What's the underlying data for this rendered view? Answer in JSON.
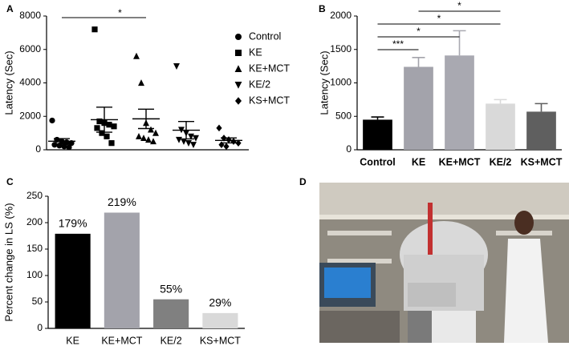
{
  "chart_data": [
    {
      "type": "dotplot",
      "label": "A",
      "ylabel": "Latency (Sec)",
      "ylim": [
        0,
        8000
      ],
      "yticks": [
        0,
        2000,
        4000,
        6000,
        8000
      ],
      "series": [
        {
          "name": "Control",
          "marker": "circle",
          "values": [
            1750,
            600,
            500,
            450,
            400,
            300,
            250,
            200,
            150
          ],
          "mean": 510,
          "sem": 160
        },
        {
          "name": "KE",
          "marker": "square",
          "values": [
            7200,
            1700,
            1600,
            1500,
            1400,
            1300,
            1000,
            800,
            400
          ],
          "mean": 1800,
          "sem": 750
        },
        {
          "name": "KE+MCT",
          "marker": "triangle-up",
          "values": [
            5600,
            4000,
            1600,
            1200,
            1000,
            800,
            700,
            600,
            500
          ],
          "mean": 1850,
          "sem": 580
        },
        {
          "name": "KE/2",
          "marker": "triangle-down",
          "values": [
            5000,
            1200,
            1000,
            800,
            700,
            600,
            500,
            400,
            300
          ],
          "mean": 1170,
          "sem": 520
        },
        {
          "name": "KS+MCT",
          "marker": "diamond",
          "values": [
            1300,
            700,
            600,
            500,
            400,
            300,
            200
          ],
          "mean": 560,
          "sem": 150
        }
      ],
      "annotations": [
        {
          "text": "*",
          "from": 0,
          "to": 2
        }
      ]
    },
    {
      "type": "bar",
      "label": "B",
      "ylabel": "Latency (Sec)",
      "ylim": [
        0,
        2000
      ],
      "yticks": [
        0,
        500,
        1000,
        1500,
        2000
      ],
      "categories": [
        "Control",
        "KE",
        "KE+MCT",
        "KE/2",
        "KS+MCT"
      ],
      "values": [
        450,
        1240,
        1410,
        690,
        570
      ],
      "errors": [
        40,
        140,
        370,
        60,
        120
      ],
      "colors": [
        "#000000",
        "#a3a3ab",
        "#a9a9b1",
        "#d9d9d9",
        "#5f5f5f"
      ],
      "annotations": [
        {
          "text": "*",
          "from": 1,
          "to": 3
        },
        {
          "text": "*",
          "from": 0,
          "to": 3
        },
        {
          "text": "*",
          "from": 0,
          "to": 2
        },
        {
          "text": "***",
          "from": 0,
          "to": 1
        }
      ]
    },
    {
      "type": "bar",
      "label": "C",
      "ylabel": "Percent change in LS (%)",
      "ylim": [
        0,
        250
      ],
      "yticks": [
        0,
        50,
        100,
        150,
        200,
        250
      ],
      "categories": [
        "KE",
        "KE+MCT",
        "KE/2",
        "KS+MCT"
      ],
      "values": [
        179,
        219,
        55,
        29
      ],
      "value_labels": [
        "179%",
        "219%",
        "55%",
        "29%"
      ],
      "colors": [
        "#000000",
        "#a3a3ab",
        "#808080",
        "#d9d9d9"
      ]
    },
    {
      "type": "photo",
      "label": "D"
    }
  ]
}
